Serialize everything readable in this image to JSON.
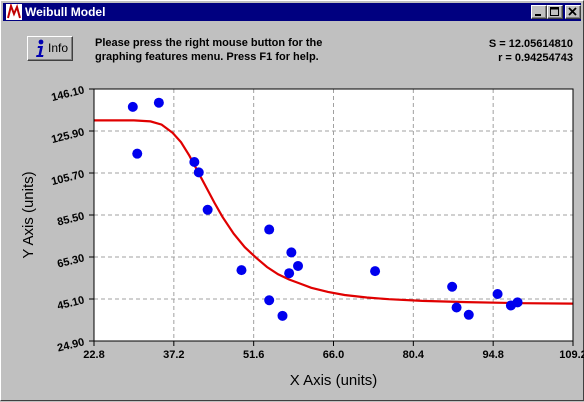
{
  "window": {
    "title": "Weibull Model",
    "controls": {
      "minimize": "minimize",
      "maximize": "maximize",
      "close": "close"
    }
  },
  "info_button": {
    "label": "Info"
  },
  "message": "Please press the right mouse button for the\ngraphing features menu.  Press F1 for help.",
  "stats": {
    "s": "S = 12.05614810",
    "r": "r = 0.94254743"
  },
  "colors": {
    "title_bar": "#000080",
    "points": "#0000ee",
    "curve": "#e00000",
    "grid": "#a0a0a0"
  },
  "chart_data": {
    "type": "scatter",
    "xlabel": "X Axis (units)",
    "ylabel": "Y Axis (units)",
    "xlim": [
      22.8,
      109.2
    ],
    "ylim": [
      24.9,
      146.1
    ],
    "x_ticks": [
      "22.8",
      "37.2",
      "51.6",
      "66.0",
      "80.4",
      "94.8",
      "109.2"
    ],
    "y_ticks": [
      "24.90",
      "45.10",
      "65.30",
      "85.50",
      "105.70",
      "125.90",
      "146.10"
    ],
    "grid": true,
    "series": [
      {
        "type": "points",
        "x": [
          29.8,
          30.6,
          34.5,
          40.9,
          41.7,
          43.3,
          49.4,
          54.4,
          54.4,
          56.8,
          58.0,
          58.4,
          59.6,
          73.5,
          87.4,
          88.2,
          90.4,
          95.6,
          98.0,
          99.2
        ],
        "y": [
          137.5,
          115.0,
          139.5,
          111.0,
          106.0,
          88.0,
          59.0,
          44.5,
          78.5,
          37.0,
          57.5,
          67.5,
          61.0,
          58.5,
          51.0,
          41.0,
          37.5,
          47.5,
          42.0,
          43.5
        ]
      },
      {
        "type": "curve",
        "x": [
          22.8,
          30.0,
          33.0,
          35.0,
          37.0,
          38.5,
          40.0,
          41.5,
          43.0,
          44.5,
          46.0,
          48.0,
          50.0,
          52.0,
          54.0,
          56.0,
          58.0,
          60.0,
          62.0,
          65.0,
          68.0,
          72.0,
          76.0,
          82.0,
          90.0,
          100.0,
          109.2
        ],
        "y": [
          131.0,
          131.0,
          130.5,
          129.0,
          125.0,
          120.5,
          114.0,
          106.5,
          99.0,
          91.5,
          84.5,
          76.5,
          70.0,
          65.0,
          60.5,
          57.0,
          54.5,
          52.5,
          50.5,
          48.5,
          47.0,
          45.8,
          45.0,
          44.2,
          43.6,
          43.1,
          42.9
        ]
      }
    ]
  }
}
